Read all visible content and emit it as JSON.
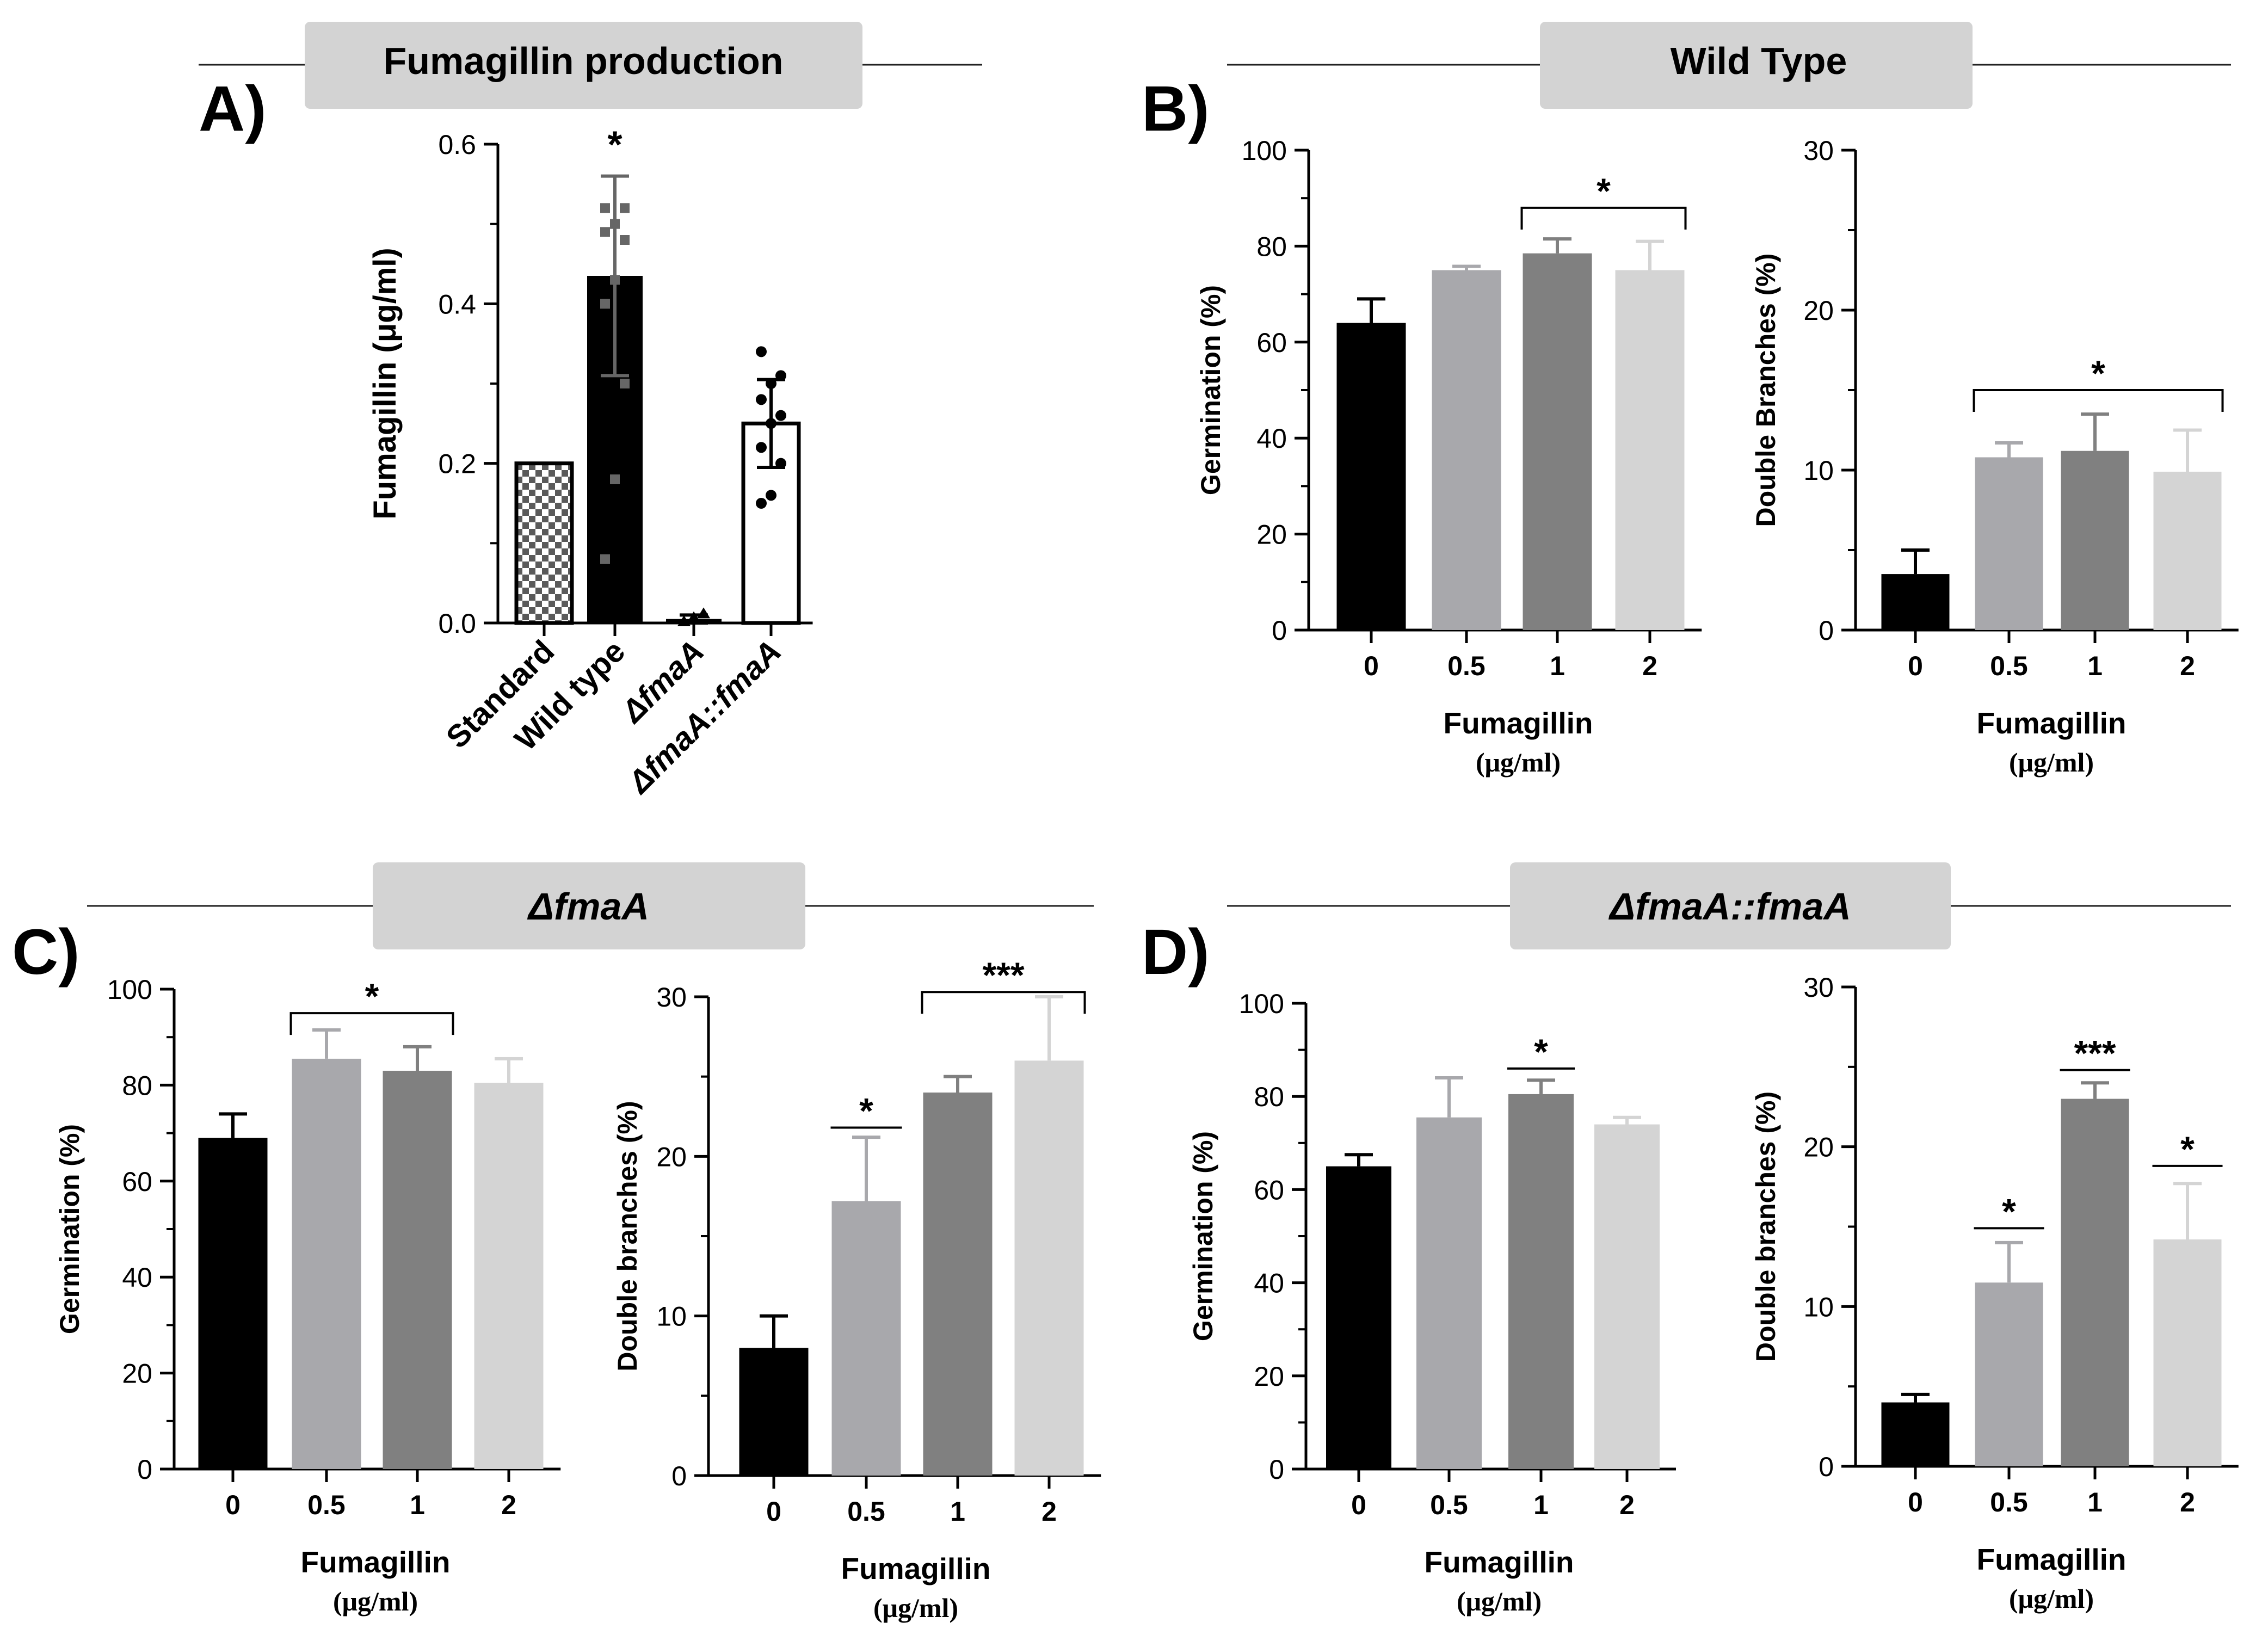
{
  "panels": [
    {
      "id": "A",
      "letter": "A)",
      "header": "Fumagillin production",
      "header_italic": false,
      "charts": [
        {
          "type": "bar",
          "ylabel": "Fumagillin (μg/ml)",
          "ylim": [
            0,
            0.6
          ],
          "yticks": [
            "0.0",
            "0.2",
            "0.4",
            "0.6"
          ],
          "tick_values": [
            0,
            0.2,
            0.4,
            0.6
          ],
          "categories": [
            "Standard",
            "Wild type",
            "ΔfmaA",
            "ΔfmaA::fmaA"
          ],
          "category_italic": [
            false,
            false,
            true,
            true
          ],
          "values": [
            0.2,
            0.435,
            0.005,
            0.25
          ],
          "errors": [
            0,
            0.125,
            0.005,
            0.055
          ],
          "fills": [
            "checker",
            "#000000",
            "#000000",
            "#ffffff"
          ],
          "points": [
            [],
            [
              0.08,
              0.18,
              0.3,
              0.4,
              0.43,
              0.48,
              0.49,
              0.5,
              0.52,
              0.52
            ],
            [
              0.0,
              0.005,
              0.01,
              0.0
            ],
            [
              0.15,
              0.16,
              0.2,
              0.22,
              0.25,
              0.26,
              0.28,
              0.3,
              0.31,
              0.34
            ]
          ],
          "sig": [
            {
              "from": 1,
              "to": 1,
              "label": "*",
              "y": 0.59,
              "style": "none"
            }
          ]
        }
      ]
    },
    {
      "id": "B",
      "letter": "B)",
      "header": "Wild Type",
      "header_italic": false,
      "charts": [
        {
          "type": "bar",
          "ylabel": "Germination (%)",
          "ylim": [
            0,
            100
          ],
          "yticks": [
            "0",
            "20",
            "40",
            "60",
            "80",
            "100"
          ],
          "tick_values": [
            0,
            20,
            40,
            60,
            80,
            100
          ],
          "categories": [
            "0",
            "0.5",
            "1",
            "2"
          ],
          "values": [
            64,
            75,
            78.5,
            75
          ],
          "errors": [
            5,
            0.8,
            3,
            6
          ],
          "fills": [
            "#000000",
            "#a8a8ac",
            "#808080",
            "#d4d4d4"
          ],
          "xlabel": "Fumagillin",
          "xunit": "(μg/ml)",
          "sig": [
            {
              "from": 2,
              "to": 3,
              "label": "*",
              "y": 88,
              "style": "bracket"
            }
          ]
        },
        {
          "type": "bar",
          "ylabel": "Double Branches (%)",
          "ylim": [
            0,
            30
          ],
          "yticks": [
            "0",
            "10",
            "20",
            "30"
          ],
          "tick_values": [
            0,
            10,
            20,
            30
          ],
          "categories": [
            "0",
            "0.5",
            "1",
            "2"
          ],
          "values": [
            3.5,
            10.8,
            11.2,
            9.9
          ],
          "errors": [
            1.5,
            0.9,
            2.3,
            2.6
          ],
          "fills": [
            "#000000",
            "#a8a8ac",
            "#808080",
            "#d4d4d4"
          ],
          "xlabel": "Fumagillin",
          "xunit": "(μg/ml)",
          "sig": [
            {
              "from": 1,
              "to": 3,
              "label": "*",
              "y": 15,
              "style": "bracket"
            }
          ]
        }
      ]
    },
    {
      "id": "C",
      "letter": "C)",
      "header": "ΔfmaA",
      "header_italic": true,
      "charts": [
        {
          "type": "bar",
          "ylabel": "Germination (%)",
          "ylim": [
            0,
            100
          ],
          "yticks": [
            "0",
            "20",
            "40",
            "60",
            "80",
            "100"
          ],
          "tick_values": [
            0,
            20,
            40,
            60,
            80,
            100
          ],
          "categories": [
            "0",
            "0.5",
            "1",
            "2"
          ],
          "values": [
            69,
            85.5,
            83,
            80.5
          ],
          "errors": [
            5,
            6,
            5,
            5
          ],
          "fills": [
            "#000000",
            "#a8a8ac",
            "#808080",
            "#d4d4d4"
          ],
          "xlabel": "Fumagillin",
          "xunit": "(μg/ml)",
          "sig": [
            {
              "from": 1,
              "to": 2,
              "label": "*",
              "y": 95,
              "style": "bracket"
            }
          ]
        },
        {
          "type": "bar",
          "ylabel": "Double branches (%)",
          "ylim": [
            0,
            30
          ],
          "yticks": [
            "0",
            "10",
            "20",
            "30"
          ],
          "tick_values": [
            0,
            10,
            20,
            30
          ],
          "categories": [
            "0",
            "0.5",
            "1",
            "2"
          ],
          "values": [
            8,
            17.2,
            24,
            26
          ],
          "errors": [
            2,
            4,
            1,
            4
          ],
          "fills": [
            "#000000",
            "#a8a8ac",
            "#808080",
            "#d4d4d4"
          ],
          "xlabel": "Fumagillin",
          "xunit": "(μg/ml)",
          "sig": [
            {
              "from": 1,
              "to": 1,
              "label": "*",
              "y": 21.8,
              "style": "line"
            },
            {
              "from": 2,
              "to": 3,
              "label": "***",
              "y": 30.3,
              "style": "bracket"
            }
          ]
        }
      ]
    },
    {
      "id": "D",
      "letter": "D)",
      "header": "ΔfmaA::fmaA",
      "header_italic": true,
      "charts": [
        {
          "type": "bar",
          "ylabel": "Germination (%)",
          "ylim": [
            0,
            100
          ],
          "yticks": [
            "0",
            "20",
            "40",
            "60",
            "80",
            "100"
          ],
          "tick_values": [
            0,
            20,
            40,
            60,
            80,
            100
          ],
          "categories": [
            "0",
            "0.5",
            "1",
            "2"
          ],
          "values": [
            65,
            75.5,
            80.5,
            74
          ],
          "errors": [
            2.5,
            8.5,
            3,
            1.5
          ],
          "fills": [
            "#000000",
            "#a8a8ac",
            "#808080",
            "#d4d4d4"
          ],
          "xlabel": "Fumagillin",
          "xunit": "(μg/ml)",
          "sig": [
            {
              "from": 2,
              "to": 2,
              "label": "*",
              "y": 86,
              "style": "line"
            }
          ]
        },
        {
          "type": "bar",
          "ylabel": "Double branches (%)",
          "ylim": [
            0,
            30
          ],
          "yticks": [
            "0",
            "10",
            "20",
            "30"
          ],
          "tick_values": [
            0,
            10,
            20,
            30
          ],
          "categories": [
            "0",
            "0.5",
            "1",
            "2"
          ],
          "values": [
            4,
            11.5,
            23,
            14.2
          ],
          "errors": [
            0.5,
            2.5,
            1,
            3.5
          ],
          "fills": [
            "#000000",
            "#a8a8ac",
            "#808080",
            "#d4d4d4"
          ],
          "xlabel": "Fumagillin",
          "xunit": "(μg/ml)",
          "sig": [
            {
              "from": 1,
              "to": 1,
              "label": "*",
              "y": 14.9,
              "style": "line"
            },
            {
              "from": 2,
              "to": 2,
              "label": "***",
              "y": 24.8,
              "style": "line"
            },
            {
              "from": 3,
              "to": 3,
              "label": "*",
              "y": 18.8,
              "style": "line"
            }
          ]
        }
      ]
    }
  ]
}
